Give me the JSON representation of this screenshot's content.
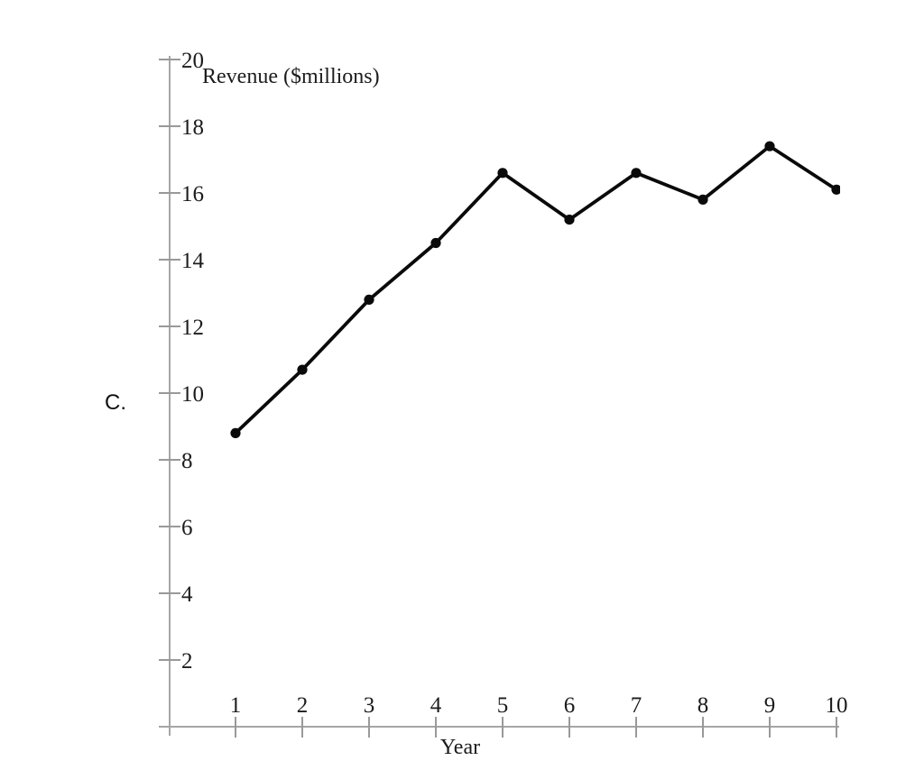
{
  "page": {
    "background_color": "#ffffff"
  },
  "option_label": "C.",
  "chart_data": {
    "type": "line",
    "title": "",
    "x_label": "Year",
    "y_label": "Revenue ($millions)",
    "x": [
      1,
      2,
      3,
      4,
      5,
      6,
      7,
      8,
      9,
      10
    ],
    "series": [
      {
        "name": "Revenue ($millions)",
        "values": [
          8.8,
          10.7,
          12.8,
          14.5,
          16.6,
          15.2,
          16.6,
          15.8,
          17.4,
          16.1
        ]
      }
    ],
    "xlim": [
      0,
      10
    ],
    "ylim": [
      0,
      20
    ],
    "x_ticks": [
      1,
      2,
      3,
      4,
      5,
      6,
      7,
      8,
      9,
      10
    ],
    "y_ticks": [
      2,
      4,
      6,
      8,
      10,
      12,
      14,
      16,
      18,
      20
    ],
    "grid": false,
    "legend_position": "none",
    "marker": "circle",
    "colors": {
      "line": "#0a0a0a",
      "marker": "#0a0a0a",
      "axis": "#a6a6a6",
      "tick": "#999999",
      "tick_label": "#1c1c1c"
    }
  }
}
